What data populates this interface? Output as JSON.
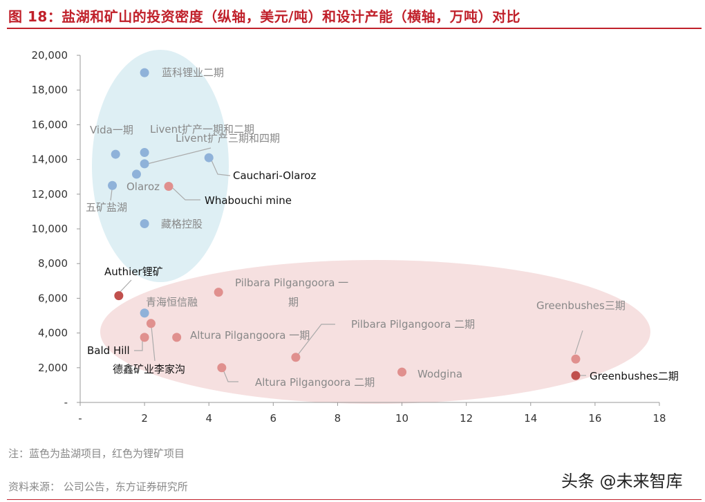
{
  "header": {
    "title": "图 18：盐湖和矿山的投资密度（纵轴，美元/吨）和设计产能（横轴，万吨）对比"
  },
  "footer": {
    "note": "注：蓝色为盐湖项目，红色为锂矿项目",
    "source": "资料来源：  公司公告，东方证券研究所",
    "watermark": "头条 @未来智库"
  },
  "colors": {
    "brine": "#8fb2d9",
    "mine_light": "#e0908e",
    "mine_dark": "#c0504d",
    "brine_ellipse": "#deeff4",
    "mine_ellipse": "#f6e0e0",
    "title_red": "#c0202a"
  },
  "chart_data": {
    "type": "scatter",
    "title": "",
    "xlabel": "",
    "ylabel": "",
    "xlim": [
      0,
      18
    ],
    "ylim": [
      0,
      20000
    ],
    "x_ticks": [
      "-",
      "2",
      "4",
      "6",
      "8",
      "10",
      "12",
      "14",
      "16",
      "18"
    ],
    "y_ticks": [
      "-",
      "2,000",
      "4,000",
      "6,000",
      "8,000",
      "10,000",
      "12,000",
      "14,000",
      "16,000",
      "18,000",
      "20,000"
    ],
    "grid": false,
    "points": [
      {
        "label": "蓝科锂业二期",
        "x": 2.0,
        "y": 19000,
        "group": "brine"
      },
      {
        "label": "Vida一期",
        "x": 1.1,
        "y": 14300,
        "group": "brine"
      },
      {
        "label": "Livent扩产一期和二期",
        "x": 2.0,
        "y": 14400,
        "group": "brine"
      },
      {
        "label": "Livent扩产三期和四期",
        "x": 2.0,
        "y": 13750,
        "group": "brine"
      },
      {
        "label": "Cauchari-Olaroz",
        "x": 4.0,
        "y": 14100,
        "group": "brine"
      },
      {
        "label": "Olaroz",
        "x": 1.75,
        "y": 13150,
        "group": "brine"
      },
      {
        "label": "五矿盐湖",
        "x": 1.0,
        "y": 12500,
        "group": "brine"
      },
      {
        "label": "藏格控股",
        "x": 2.0,
        "y": 10300,
        "group": "brine"
      },
      {
        "label": "青海恒信融",
        "x": 2.0,
        "y": 5150,
        "group": "brine"
      },
      {
        "label": "Whabouchi mine",
        "x": 2.75,
        "y": 12450,
        "group": "mine"
      },
      {
        "label": "Authier锂矿",
        "x": 1.2,
        "y": 6150,
        "group": "mine_dark"
      },
      {
        "label": "Pilbara Pilgangoora 一期",
        "x": 4.3,
        "y": 6350,
        "group": "mine"
      },
      {
        "label": "德鑫矿业李家沟",
        "x": 2.2,
        "y": 4550,
        "group": "mine"
      },
      {
        "label": "Bald Hill",
        "x": 2.0,
        "y": 3750,
        "group": "mine"
      },
      {
        "label": "Altura Pilgangoora 一期",
        "x": 3.0,
        "y": 3750,
        "group": "mine"
      },
      {
        "label": "Pilbara Pilgangoora 二期",
        "x": 6.7,
        "y": 2600,
        "group": "mine"
      },
      {
        "label": "Altura Pilgangoora 二期",
        "x": 4.4,
        "y": 2000,
        "group": "mine"
      },
      {
        "label": "Wodgina",
        "x": 10.0,
        "y": 1750,
        "group": "mine"
      },
      {
        "label": "Greenbushes三期",
        "x": 15.4,
        "y": 2500,
        "group": "mine"
      },
      {
        "label": "Greenbushes二期",
        "x": 15.4,
        "y": 1550,
        "group": "mine_dark"
      }
    ]
  }
}
